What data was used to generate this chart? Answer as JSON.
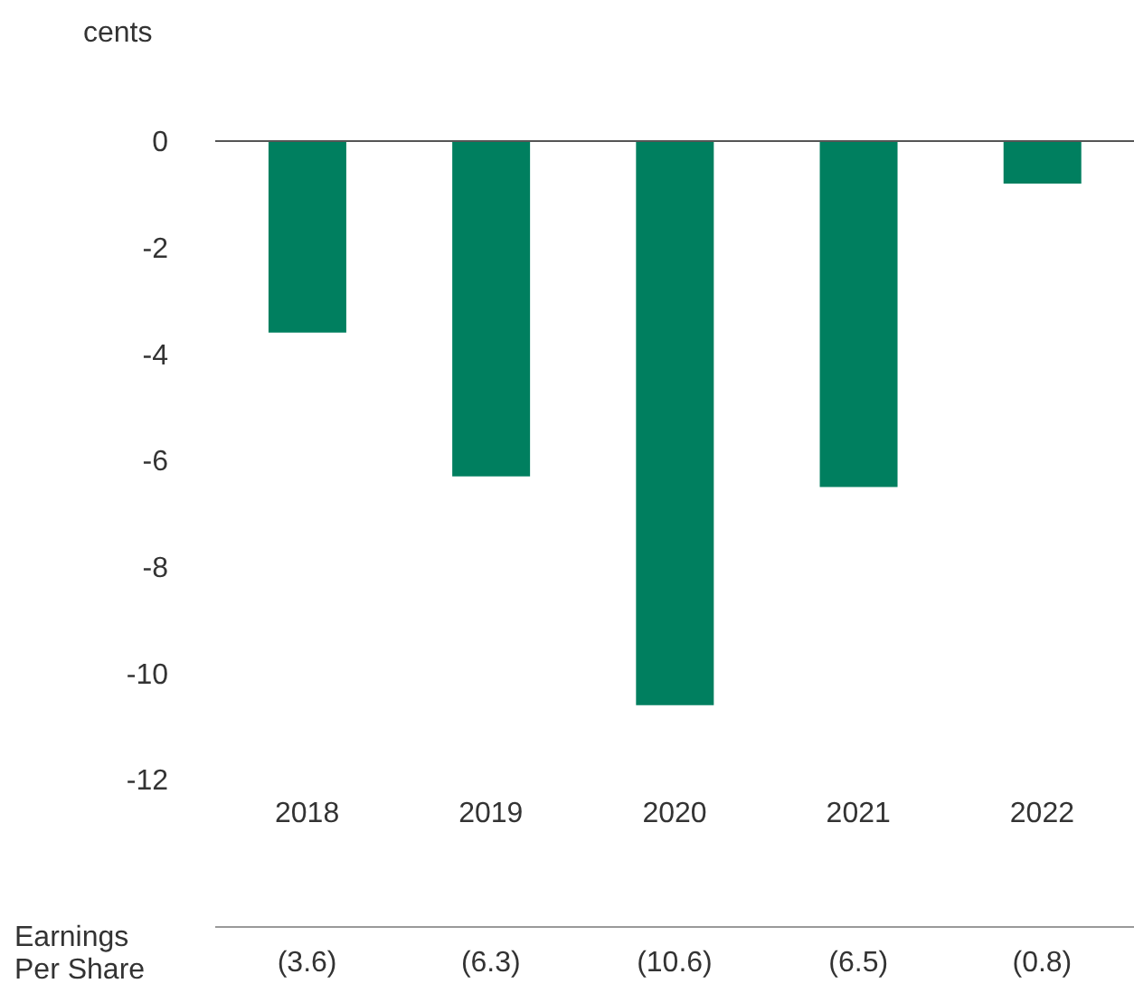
{
  "chart_data": {
    "type": "bar",
    "ylabel": "cents",
    "categories": [
      "2018",
      "2019",
      "2020",
      "2021",
      "2022"
    ],
    "series": [
      {
        "name": "Earnings Per Share",
        "color": "#007f5f",
        "values": [
          -3.6,
          -6.3,
          -10.6,
          -6.5,
          -0.8
        ],
        "value_labels": [
          "(3.6)",
          "(6.3)",
          "(10.6)",
          "(6.5)",
          "(0.8)"
        ]
      }
    ],
    "ylim": [
      -12,
      0
    ],
    "yticks": [
      -12,
      -10,
      -8,
      -6,
      -4,
      -2,
      0
    ],
    "grid": false,
    "legend": false
  }
}
